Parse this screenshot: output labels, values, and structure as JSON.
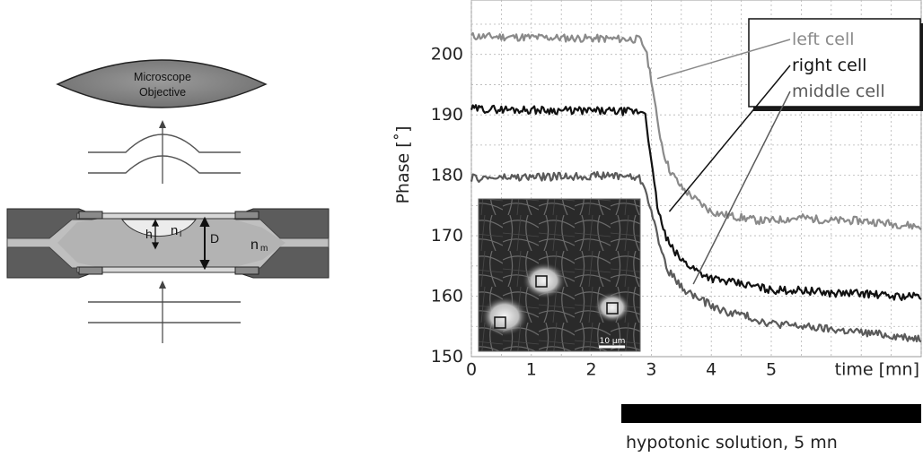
{
  "diagram": {
    "objective_line1": "Microscope",
    "objective_line2": "Objective",
    "label_h": "h",
    "label_ni_main": "n",
    "label_ni_sub": "i",
    "label_D": "D",
    "label_nm_main": "n",
    "label_nm_sub": "m"
  },
  "chart_data": {
    "type": "line",
    "ylabel": "Phase [˚]",
    "xlabel": "time [mn]",
    "xlim": [
      0,
      7.5
    ],
    "ylim": [
      150,
      209
    ],
    "x_ticks": [
      "0",
      "1",
      "2",
      "3",
      "4",
      "5"
    ],
    "y_ticks": [
      "150",
      "160",
      "170",
      "180",
      "190",
      "200"
    ],
    "grid": true,
    "legend": {
      "placement": "top-right",
      "entries": [
        "left cell",
        "right cell",
        "middle cell"
      ]
    },
    "series": [
      {
        "name": "left cell",
        "color": "#8a8a8a",
        "x": [
          0,
          2.8,
          2.9,
          3.0,
          3.1,
          3.2,
          3.3,
          3.5,
          3.8,
          4.0,
          4.2,
          4.5,
          4.8,
          5.0,
          5.5,
          6.0,
          6.5,
          7.0,
          7.5
        ],
        "y": [
          203,
          202.5,
          201,
          196,
          189,
          184,
          181,
          178,
          175.5,
          174,
          173.5,
          173,
          172.5,
          172.5,
          173,
          172.5,
          172.5,
          172,
          171.5
        ]
      },
      {
        "name": "right cell",
        "color": "#111111",
        "x": [
          0,
          2.9,
          3.0,
          3.1,
          3.2,
          3.3,
          3.5,
          3.8,
          4.0,
          4.2,
          4.5,
          4.8,
          5.0,
          5.5,
          6.0,
          6.5,
          7.0,
          7.5
        ],
        "y": [
          191,
          190.5,
          182,
          175,
          171,
          168.5,
          166,
          164,
          163,
          162.5,
          162,
          161.5,
          161,
          161,
          160.5,
          160.5,
          160,
          160
        ]
      },
      {
        "name": "middle cell",
        "color": "#5a5a5a",
        "x": [
          0,
          2.5,
          2.8,
          2.9,
          3.0,
          3.1,
          3.2,
          3.3,
          3.5,
          3.8,
          4.0,
          4.2,
          4.5,
          4.8,
          5.0,
          5.5,
          6.0,
          6.5,
          7.0,
          7.5
        ],
        "y": [
          179.5,
          180,
          179.5,
          178,
          174,
          170,
          166.5,
          164,
          161.5,
          159.5,
          158.5,
          157.5,
          157,
          156,
          155.5,
          155,
          154.5,
          154,
          153.5,
          153
        ]
      }
    ],
    "inset": {
      "scale_bar_label": "10 µm"
    },
    "annotation": {
      "label": "hypotonic solution, 5 mn",
      "x_start": 3.0,
      "duration_mn": 5
    }
  }
}
